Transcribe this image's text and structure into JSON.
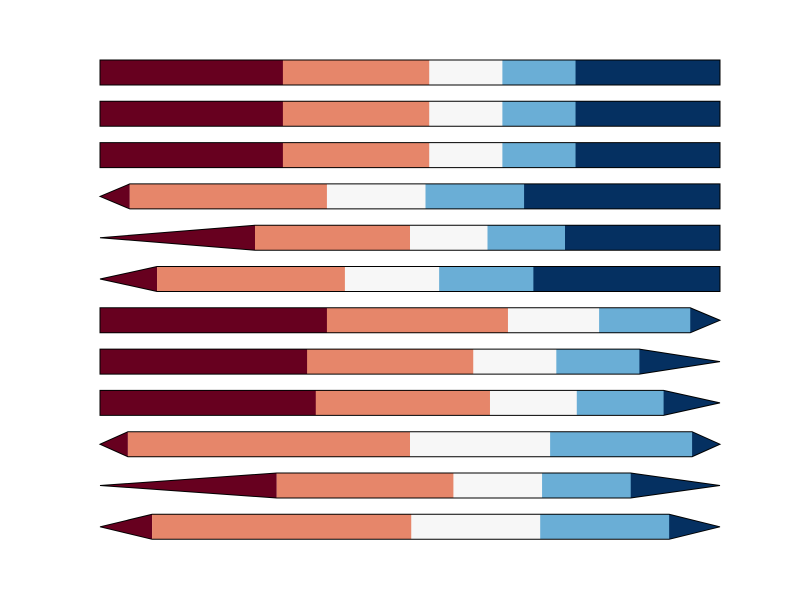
{
  "chart_data": {
    "type": "colorbar",
    "colors": [
      "#67001f",
      "#e6866a",
      "#f7f7f7",
      "#6aaed6",
      "#053061"
    ],
    "edge_color": "#000000",
    "rows": [
      {
        "extend": "neither",
        "ends": "none",
        "values": [
          0.295,
          0.236,
          0.118,
          0.118,
          0.233
        ]
      },
      {
        "extend": "neither",
        "ends": "none",
        "values": [
          0.295,
          0.236,
          0.118,
          0.118,
          0.233
        ]
      },
      {
        "extend": "neither",
        "ends": "none",
        "values": [
          0.295,
          0.236,
          0.118,
          0.118,
          0.233
        ]
      },
      {
        "extend": "min",
        "ends": "short",
        "values": [
          0.048,
          0.318,
          0.159,
          0.159,
          0.316
        ]
      },
      {
        "extend": "min",
        "ends": "long",
        "values": [
          0.25,
          0.25,
          0.125,
          0.125,
          0.25
        ]
      },
      {
        "extend": "min",
        "ends": "short",
        "values": [
          0.092,
          0.303,
          0.152,
          0.152,
          0.301
        ]
      },
      {
        "extend": "max",
        "ends": "short",
        "values": [
          0.366,
          0.292,
          0.147,
          0.147,
          0.048
        ]
      },
      {
        "extend": "max",
        "ends": "long",
        "values": [
          0.334,
          0.268,
          0.134,
          0.134,
          0.13
        ]
      },
      {
        "extend": "max",
        "ends": "short",
        "values": [
          0.348,
          0.281,
          0.14,
          0.14,
          0.091
        ]
      },
      {
        "extend": "both",
        "ends": "short",
        "values": [
          0.045,
          0.455,
          0.226,
          0.229,
          0.045
        ]
      },
      {
        "extend": "both",
        "ends": "long",
        "values": [
          0.285,
          0.285,
          0.143,
          0.143,
          0.144
        ]
      },
      {
        "extend": "both",
        "ends": "short",
        "values": [
          0.084,
          0.418,
          0.208,
          0.208,
          0.082
        ]
      }
    ]
  }
}
